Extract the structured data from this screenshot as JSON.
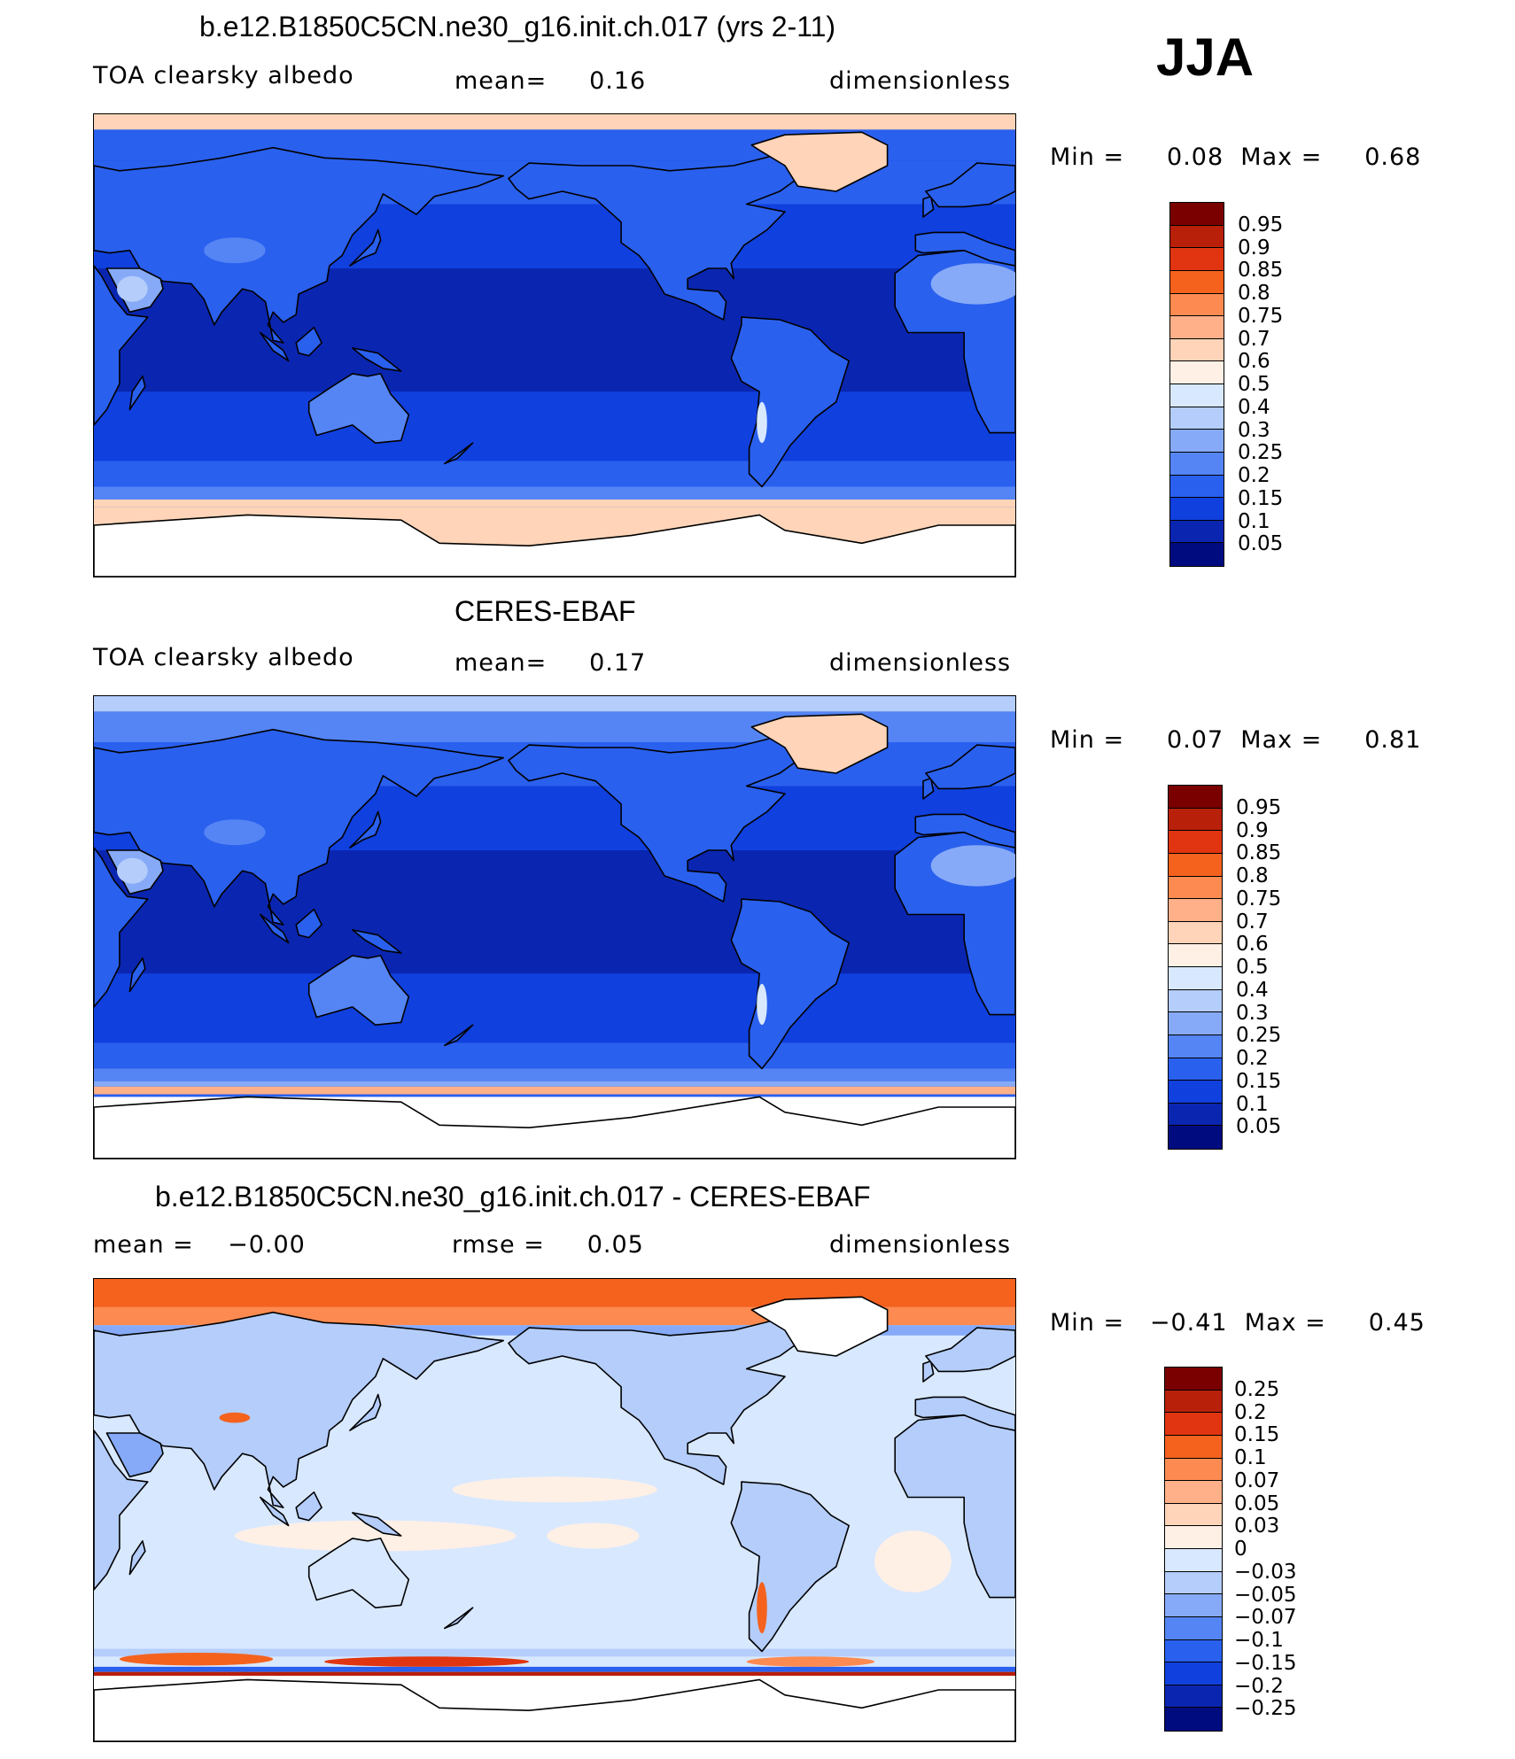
{
  "season": "JJA",
  "panels": [
    {
      "title": "b.e12.B1850C5CN.ne30_g16.init.ch.017 (yrs 2-11)",
      "left_text": "TOA clearsky albedo",
      "center_text": "mean=     0.16",
      "right_text": "dimensionless",
      "minmax": "Min =     0.08  Max =     0.68",
      "min": 0.08,
      "max": 0.68,
      "mean": 0.16,
      "kind": "model",
      "colorbar_labels": [
        "0.95",
        "0.9",
        "0.85",
        "0.8",
        "0.75",
        "0.7",
        "0.6",
        "0.5",
        "0.4",
        "0.3",
        "0.25",
        "0.2",
        "0.15",
        "0.1",
        "0.05"
      ],
      "colorbar_colors": [
        "#7a0000",
        "#b8200a",
        "#e03510",
        "#f4621e",
        "#fd8a50",
        "#ffb088",
        "#ffd4b8",
        "#fff0e6",
        "#d8e8ff",
        "#b4cdfb",
        "#86aaf7",
        "#5585f4",
        "#2a60ee",
        "#1040de",
        "#0a26b0",
        "#000b80"
      ]
    },
    {
      "title": "CERES-EBAF",
      "left_text": "TOA clearsky albedo",
      "center_text": "mean=     0.17",
      "right_text": "dimensionless",
      "minmax": "Min =     0.07  Max =     0.81",
      "min": 0.07,
      "max": 0.81,
      "mean": 0.17,
      "kind": "obs",
      "colorbar_labels": [
        "0.95",
        "0.9",
        "0.85",
        "0.8",
        "0.75",
        "0.7",
        "0.6",
        "0.5",
        "0.4",
        "0.3",
        "0.25",
        "0.2",
        "0.15",
        "0.1",
        "0.05"
      ],
      "colorbar_colors": [
        "#7a0000",
        "#b8200a",
        "#e03510",
        "#f4621e",
        "#fd8a50",
        "#ffb088",
        "#ffd4b8",
        "#fff0e6",
        "#d8e8ff",
        "#b4cdfb",
        "#86aaf7",
        "#5585f4",
        "#2a60ee",
        "#1040de",
        "#0a26b0",
        "#000b80"
      ]
    },
    {
      "title": "b.e12.B1850C5CN.ne30_g16.init.ch.017 - CERES-EBAF",
      "left_text": "mean =    −0.00",
      "center_text": "rmse =     0.05",
      "right_text": "dimensionless",
      "minmax": "Min =   −0.41  Max =     0.45",
      "min": -0.41,
      "max": 0.45,
      "mean": -0.0,
      "rmse": 0.05,
      "kind": "diff",
      "colorbar_labels": [
        "0.25",
        "0.2",
        "0.15",
        "0.1",
        "0.07",
        "0.05",
        "0.03",
        "0",
        "−0.03",
        "−0.05",
        "−0.07",
        "−0.1",
        "−0.15",
        "−0.2",
        "−0.25"
      ],
      "colorbar_colors": [
        "#7a0000",
        "#b8200a",
        "#e03510",
        "#f4621e",
        "#fd8a50",
        "#ffb088",
        "#ffd4b8",
        "#fff0e6",
        "#d8e8ff",
        "#b4cdfb",
        "#86aaf7",
        "#5585f4",
        "#2a60ee",
        "#1040de",
        "#0a26b0",
        "#000b80"
      ]
    }
  ]
}
